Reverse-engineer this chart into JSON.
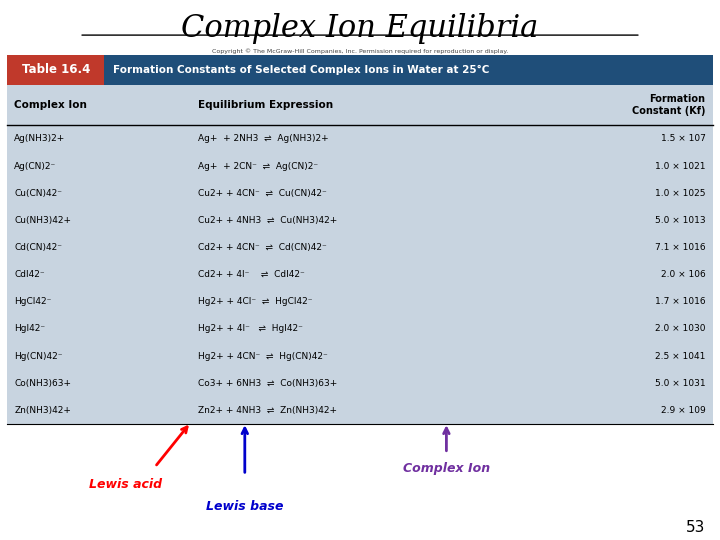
{
  "title": "Complex Ion Equilibria",
  "table_title": "Formation Constants of Selected Complex Ions in Water at 25°C",
  "table_label": "Table 16.4",
  "copyright": "Copyright © The McGraw-Hill Companies, Inc. Permission required for reproduction or display.",
  "rows": [
    [
      "Ag(NH3)2+",
      "Ag+  + 2NH3  ⇌  Ag(NH3)2+",
      "1.5 × 107"
    ],
    [
      "Ag(CN)2⁻",
      "Ag+  + 2CN⁻  ⇌  Ag(CN)2⁻",
      "1.0 × 1021"
    ],
    [
      "Cu(CN)42⁻",
      "Cu2+ + 4CN⁻  ⇌  Cu(CN)42⁻",
      "1.0 × 1025"
    ],
    [
      "Cu(NH3)42+",
      "Cu2+ + 4NH3  ⇌  Cu(NH3)42+",
      "5.0 × 1013"
    ],
    [
      "Cd(CN)42⁻",
      "Cd2+ + 4CN⁻  ⇌  Cd(CN)42⁻",
      "7.1 × 1016"
    ],
    [
      "CdI42⁻",
      "Cd2+ + 4I⁻    ⇌  CdI42⁻",
      "2.0 × 106"
    ],
    [
      "HgCl42⁻",
      "Hg2+ + 4Cl⁻  ⇌  HgCl42⁻",
      "1.7 × 1016"
    ],
    [
      "HgI42⁻",
      "Hg2+ + 4I⁻   ⇌  HgI42⁻",
      "2.0 × 1030"
    ],
    [
      "Hg(CN)42⁻",
      "Hg2+ + 4CN⁻  ⇌  Hg(CN)42⁻",
      "2.5 × 1041"
    ],
    [
      "Co(NH3)63+",
      "Co3+ + 6NH3  ⇌  Co(NH3)63+",
      "5.0 × 1031"
    ],
    [
      "Zn(NH3)42+",
      "Zn2+ + 4NH3  ⇌  Zn(NH3)42+",
      "2.9 × 109"
    ]
  ],
  "annotation_lewis_acid": "Lewis acid",
  "annotation_lewis_base": "Lewis base",
  "annotation_complex_ion": "Complex Ion",
  "background_color": "#ffffff",
  "table_bg_color": "#c8d4e0",
  "header_row_color": "#1f4e79",
  "table_label_bg": "#c0392b",
  "slide_number": "53"
}
